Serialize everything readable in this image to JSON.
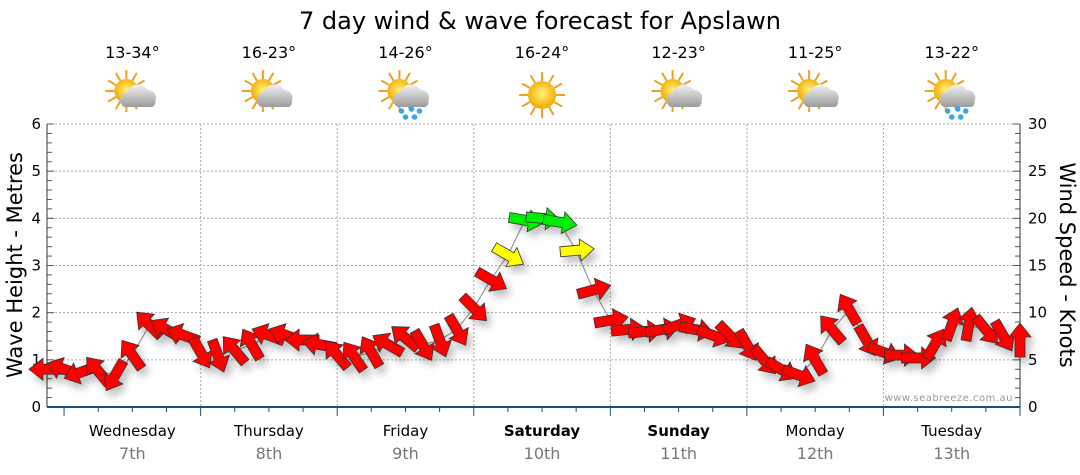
{
  "chart_data": {
    "type": "scatter",
    "title": "7 day wind & wave forecast for Apslawn",
    "ylabel_left": "Wave Height - Metres",
    "ylabel_right": "Wind Speed - Knots",
    "ylim_left": [
      0,
      6
    ],
    "ylim_right": [
      0,
      30
    ],
    "yticks_left": [
      "0",
      "1",
      "2",
      "3",
      "4",
      "5",
      "6"
    ],
    "yticks_right": [
      "0",
      "5",
      "10",
      "15",
      "20",
      "25",
      "30"
    ],
    "x_unit": "hours from Wednesday 00:00",
    "xlim": [
      -3,
      168
    ],
    "grid": true,
    "watermark": "www.seabreeze.com.au",
    "days": [
      {
        "name": "Wednesday",
        "date": "7th",
        "bold": false,
        "temp": "13-34°",
        "icon": "partly-cloudy-icon"
      },
      {
        "name": "Thursday",
        "date": "8th",
        "bold": false,
        "temp": "16-23°",
        "icon": "partly-cloudy-icon"
      },
      {
        "name": "Friday",
        "date": "9th",
        "bold": false,
        "temp": "14-26°",
        "icon": "showers-icon"
      },
      {
        "name": "Saturday",
        "date": "10th",
        "bold": true,
        "temp": "16-24°",
        "icon": "sunny-icon"
      },
      {
        "name": "Sunday",
        "date": "11th",
        "bold": true,
        "temp": "12-23°",
        "icon": "partly-cloudy-icon"
      },
      {
        "name": "Monday",
        "date": "12th",
        "bold": false,
        "temp": "11-25°",
        "icon": "partly-cloudy-icon"
      },
      {
        "name": "Tuesday",
        "date": "13th",
        "bold": false,
        "temp": "13-22°",
        "icon": "showers-icon"
      }
    ],
    "wind_colors": {
      "light": "#ff0000",
      "moderate": "#ffff00",
      "strong": "#00ee00"
    },
    "wind_thresholds_knots": [
      14,
      18
    ],
    "wind_series": {
      "hours": [
        -3,
        0,
        3,
        6,
        9,
        12,
        15,
        18,
        21,
        24,
        27,
        30,
        33,
        36,
        39,
        42,
        45,
        48,
        51,
        54,
        57,
        60,
        63,
        66,
        69,
        72,
        75,
        78,
        81,
        84,
        87,
        90,
        93,
        96,
        99,
        102,
        105,
        108,
        111,
        114,
        117,
        120,
        123,
        126,
        129,
        132,
        135,
        138,
        141,
        144,
        147,
        150,
        153,
        156,
        159,
        162,
        165,
        168
      ],
      "knots": [
        4,
        4,
        3.7,
        3.8,
        3.4,
        5.5,
        8.7,
        8.2,
        7.6,
        5.8,
        5.5,
        6,
        6.6,
        7.6,
        7.6,
        7.1,
        6.6,
        5.5,
        5.3,
        5.8,
        6.6,
        7.3,
        6.6,
        7.1,
        8.2,
        10.5,
        13.5,
        16.1,
        19.8,
        20,
        19.6,
        16.6,
        12.4,
        9.2,
        8.2,
        8,
        8.2,
        8.7,
        8.2,
        7.6,
        7.6,
        6.6,
        5,
        4,
        3.4,
        5,
        8.2,
        10.3,
        7.1,
        5.8,
        5.5,
        5.2,
        6.6,
        8.7,
        8.7,
        8.2,
        7.6,
        7
      ],
      "direction_deg": [
        180,
        200,
        160,
        230,
        120,
        235,
        225,
        210,
        200,
        60,
        70,
        230,
        240,
        200,
        200,
        180,
        190,
        230,
        235,
        240,
        210,
        220,
        60,
        70,
        60,
        45,
        30,
        30,
        10,
        5,
        10,
        -5,
        -15,
        -10,
        -5,
        -5,
        -10,
        -20,
        10,
        20,
        45,
        60,
        50,
        30,
        20,
        -120,
        -130,
        -120,
        60,
        20,
        0,
        0,
        -60,
        -70,
        -80,
        50,
        60,
        -90
      ]
    }
  }
}
